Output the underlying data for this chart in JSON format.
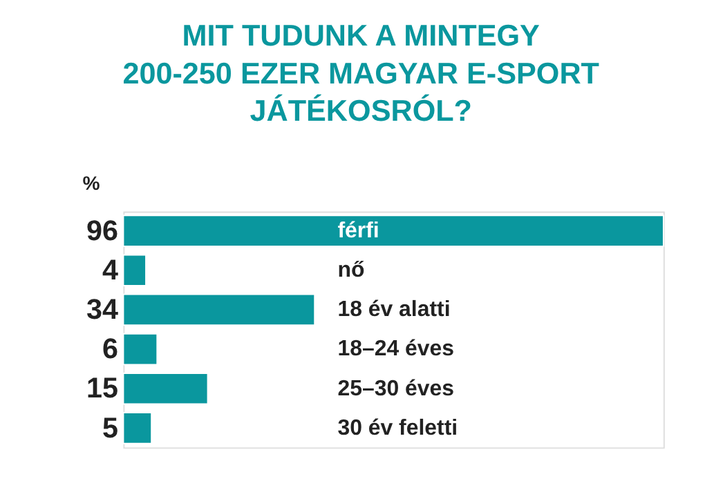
{
  "chart_data": {
    "type": "bar",
    "orientation": "horizontal",
    "title": "MIT TUDUNK A MINTEGY\n200-250 EZER MAGYAR E-SPORT\nJÁTÉKOSRÓL?",
    "xlabel": "%",
    "categories": [
      "férfi",
      "nő",
      "18 év alatti",
      "18–24 éves",
      "25–30 éves",
      "30 év feletti"
    ],
    "values": [
      96,
      4,
      34,
      6,
      15,
      5
    ],
    "color": "#0a979e",
    "data_labels": true
  }
}
